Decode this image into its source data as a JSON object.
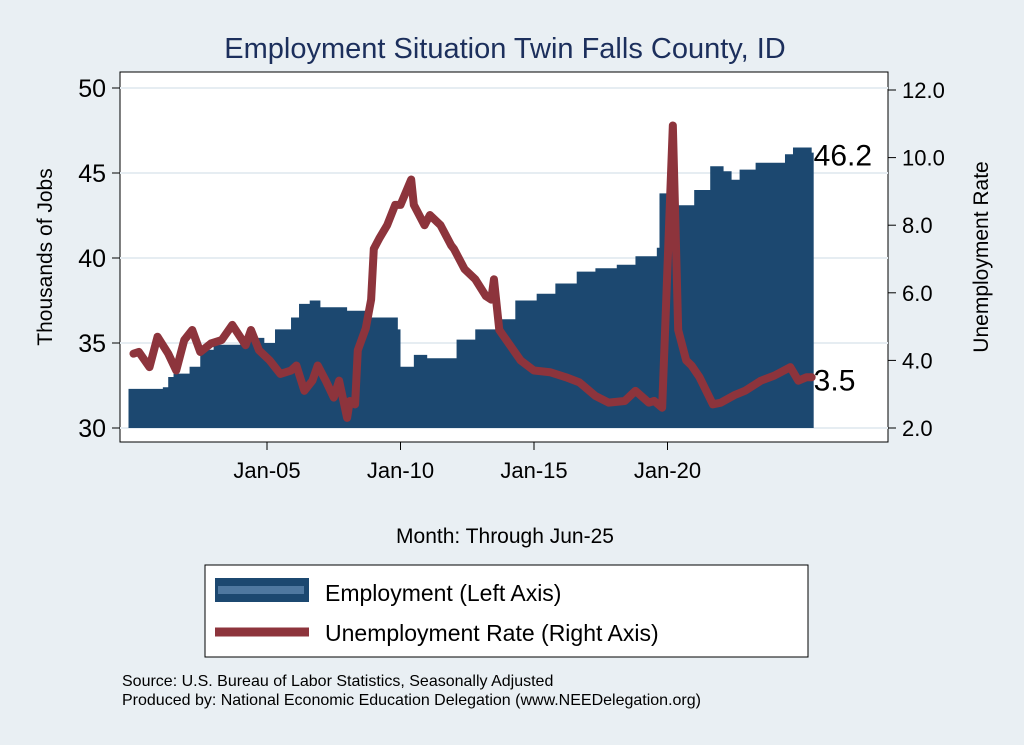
{
  "chart_data": {
    "type": "bar+line",
    "title": "Employment Situation Twin Falls  County, ID",
    "xlabel": "Month: Through Jun-25",
    "ylabel_left": "Thousands of Jobs",
    "ylabel_right": "Unemployment Rate",
    "ylim_left": [
      30,
      50
    ],
    "ylim_right": [
      2,
      12
    ],
    "xlim": [
      1999.7,
      2028.5
    ],
    "yticks_left": [
      "30",
      "35",
      "40",
      "45",
      "50"
    ],
    "yticks_right": [
      "2.0",
      "4.0",
      "6.0",
      "8.0",
      "10.0",
      "12.0"
    ],
    "xticks": [
      {
        "label": "Jan-05",
        "x": 2005
      },
      {
        "label": "Jan-10",
        "x": 2010
      },
      {
        "label": "Jan-15",
        "x": 2015
      },
      {
        "label": "Jan-20",
        "x": 2020
      }
    ],
    "grid": true,
    "legend_position": "bottom",
    "end_labels": {
      "employment": "46.2",
      "unemployment": "3.5"
    },
    "series": [
      {
        "name": "Employment (Left Axis)",
        "axis": "left",
        "type": "area",
        "color": "#1c4870",
        "points": [
          [
            2000.0,
            32.3
          ],
          [
            2001.1,
            32.4
          ],
          [
            2001.3,
            33.0
          ],
          [
            2001.5,
            33.2
          ],
          [
            2002.1,
            33.6
          ],
          [
            2002.5,
            34.6
          ],
          [
            2003.0,
            34.9
          ],
          [
            2004.0,
            35.3
          ],
          [
            2004.9,
            35.0
          ],
          [
            2005.3,
            35.8
          ],
          [
            2005.9,
            36.5
          ],
          [
            2006.2,
            37.3
          ],
          [
            2006.6,
            37.5
          ],
          [
            2007.0,
            37.1
          ],
          [
            2008.0,
            36.9
          ],
          [
            2008.5,
            36.9
          ],
          [
            2008.8,
            36.5
          ],
          [
            2009.6,
            36.5
          ],
          [
            2009.9,
            35.8
          ],
          [
            2010.0,
            33.6
          ],
          [
            2010.5,
            34.3
          ],
          [
            2011.0,
            34.1
          ],
          [
            2012.1,
            35.2
          ],
          [
            2012.8,
            35.8
          ],
          [
            2013.6,
            36.4
          ],
          [
            2014.3,
            37.5
          ],
          [
            2015.1,
            37.9
          ],
          [
            2015.8,
            38.5
          ],
          [
            2016.6,
            39.2
          ],
          [
            2017.3,
            39.4
          ],
          [
            2018.1,
            39.6
          ],
          [
            2018.8,
            40.1
          ],
          [
            2019.6,
            40.6
          ],
          [
            2019.7,
            43.8
          ],
          [
            2020.3,
            43.1
          ],
          [
            2021.0,
            44.0
          ],
          [
            2021.6,
            45.4
          ],
          [
            2022.1,
            45.1
          ],
          [
            2022.4,
            44.6
          ],
          [
            2022.7,
            45.2
          ],
          [
            2023.3,
            45.6
          ],
          [
            2024.4,
            46.1
          ],
          [
            2024.7,
            46.5
          ],
          [
            2025.4,
            46.2
          ]
        ]
      },
      {
        "name": "Unemployment Rate (Right Axis)",
        "axis": "right",
        "type": "line",
        "color": "#8d343c",
        "points": [
          [
            2000.0,
            4.2
          ],
          [
            2000.2,
            4.25
          ],
          [
            2000.6,
            3.8
          ],
          [
            2000.9,
            4.7
          ],
          [
            2001.3,
            4.2
          ],
          [
            2001.6,
            3.7
          ],
          [
            2001.9,
            4.6
          ],
          [
            2002.2,
            4.9
          ],
          [
            2002.5,
            4.25
          ],
          [
            2002.9,
            4.5
          ],
          [
            2003.3,
            4.6
          ],
          [
            2003.7,
            5.05
          ],
          [
            2004.2,
            4.45
          ],
          [
            2004.4,
            4.9
          ],
          [
            2004.7,
            4.3
          ],
          [
            2005.1,
            4.0
          ],
          [
            2005.5,
            3.6
          ],
          [
            2005.9,
            3.7
          ],
          [
            2006.1,
            3.85
          ],
          [
            2006.4,
            3.1
          ],
          [
            2006.7,
            3.4
          ],
          [
            2006.9,
            3.85
          ],
          [
            2007.2,
            3.4
          ],
          [
            2007.5,
            2.9
          ],
          [
            2007.7,
            3.4
          ],
          [
            2008.0,
            2.3
          ],
          [
            2008.1,
            2.8
          ],
          [
            2008.3,
            2.7
          ],
          [
            2008.4,
            4.3
          ],
          [
            2008.7,
            4.95
          ],
          [
            2008.9,
            5.8
          ],
          [
            2009.0,
            7.3
          ],
          [
            2009.2,
            7.6
          ],
          [
            2009.5,
            8.0
          ],
          [
            2009.8,
            8.6
          ],
          [
            2010.0,
            8.6
          ],
          [
            2010.4,
            9.35
          ],
          [
            2010.5,
            8.6
          ],
          [
            2010.9,
            8.0
          ],
          [
            2011.1,
            8.3
          ],
          [
            2011.5,
            8.0
          ],
          [
            2011.9,
            7.4
          ],
          [
            2012.0,
            7.3
          ],
          [
            2012.4,
            6.7
          ],
          [
            2012.8,
            6.4
          ],
          [
            2013.2,
            5.9
          ],
          [
            2013.4,
            5.8
          ],
          [
            2013.5,
            6.4
          ],
          [
            2013.7,
            4.9
          ],
          [
            2014.1,
            4.45
          ],
          [
            2014.5,
            4.0
          ],
          [
            2015.0,
            3.7
          ],
          [
            2015.6,
            3.65
          ],
          [
            2016.2,
            3.5
          ],
          [
            2016.7,
            3.35
          ],
          [
            2017.3,
            2.95
          ],
          [
            2017.8,
            2.75
          ],
          [
            2018.4,
            2.8
          ],
          [
            2018.8,
            3.1
          ],
          [
            2019.3,
            2.75
          ],
          [
            2019.5,
            2.8
          ],
          [
            2019.8,
            2.6
          ],
          [
            2020.2,
            10.95
          ],
          [
            2020.4,
            4.9
          ],
          [
            2020.7,
            4.0
          ],
          [
            2020.9,
            3.85
          ],
          [
            2021.2,
            3.5
          ],
          [
            2021.7,
            2.7
          ],
          [
            2022.0,
            2.75
          ],
          [
            2022.5,
            2.97
          ],
          [
            2022.9,
            3.1
          ],
          [
            2023.5,
            3.4
          ],
          [
            2024.0,
            3.55
          ],
          [
            2024.6,
            3.8
          ],
          [
            2024.9,
            3.4
          ],
          [
            2025.2,
            3.5
          ],
          [
            2025.4,
            3.5
          ]
        ]
      }
    ]
  },
  "footer": {
    "source": "Source: U.S. Bureau of Labor Statistics, Seasonally Adjusted",
    "produced": "Produced by: National Economic Education Delegation (www.NEEDelegation.org)"
  }
}
